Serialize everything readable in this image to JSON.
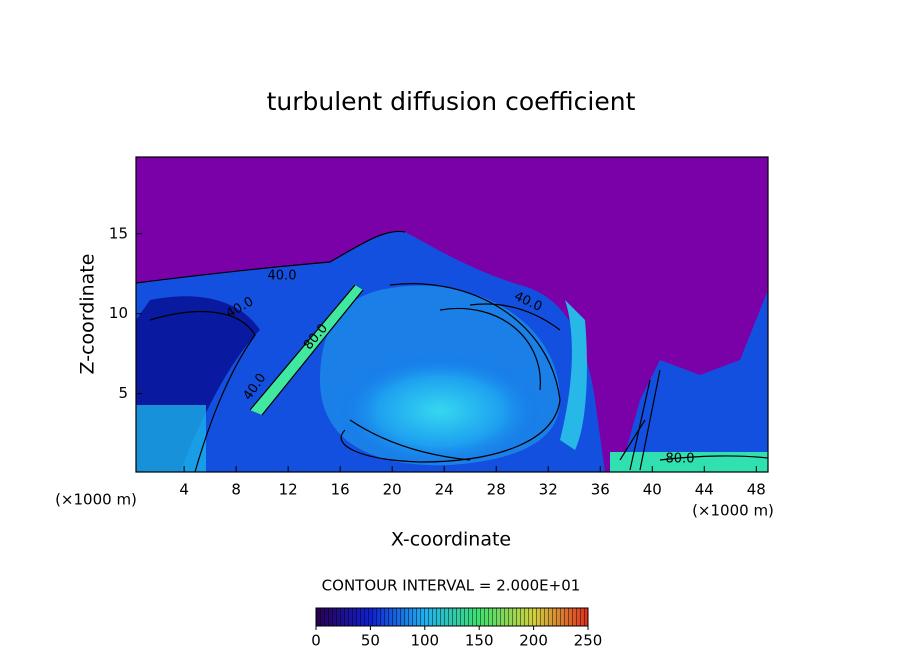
{
  "chart_data": {
    "type": "contour",
    "title": "turbulent diffusion coefficient",
    "xlabel": "X-coordinate",
    "ylabel": "Z-coordinate",
    "x_unit_label": "(×1000 m)",
    "xlim": [
      0.3,
      48.9
    ],
    "xticks": [
      4,
      8,
      12,
      16,
      20,
      24,
      28,
      32,
      36,
      40,
      44,
      48
    ],
    "ylim": [
      0.1,
      19.8
    ],
    "yticks": [
      5,
      10,
      15
    ],
    "contour_labels": [
      {
        "value": 40,
        "label": "40.0"
      },
      {
        "value": 40,
        "label": "40.0"
      },
      {
        "value": 40,
        "label": "40.0"
      },
      {
        "value": 40,
        "label": "40.0"
      },
      {
        "value": 80,
        "label": "80.0"
      },
      {
        "value": 80,
        "label": "80.0"
      }
    ],
    "colorbar": {
      "title": "CONTOUR INTERVAL = 2.000E+01",
      "lim": [
        0,
        250
      ],
      "ticks": [
        0,
        50,
        100,
        150,
        200,
        250
      ]
    }
  }
}
